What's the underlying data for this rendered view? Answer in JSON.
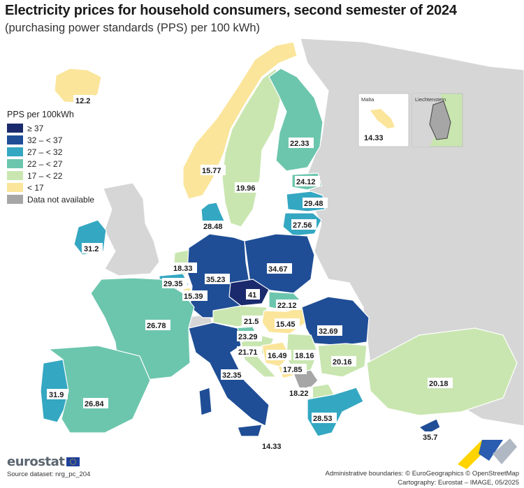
{
  "title": "Electricity prices for household consumers, second semester of 2024",
  "subtitle": "(purchasing power standards (PPS) per 100 kWh)",
  "legend": {
    "title": "PPS per 100kWh",
    "classes": [
      {
        "label": "≥ 37",
        "color": "#1a2a6c"
      },
      {
        "label": "32 – < 37",
        "color": "#1f4e96"
      },
      {
        "label": "27 – < 32",
        "color": "#34a7c2"
      },
      {
        "label": "22 – < 27",
        "color": "#6cc6ad"
      },
      {
        "label": "17 – < 22",
        "color": "#c9e6b0"
      },
      {
        "label": "< 17",
        "color": "#fbe59a"
      },
      {
        "label": "Data not available",
        "color": "#a6a6a6"
      }
    ]
  },
  "colors": {
    "non_eu_land": "#d6d6d6",
    "sea": "#ffffff",
    "border": "#ffffff"
  },
  "values": {
    "iceland": "12.2",
    "norway": "15.77",
    "sweden": "19.96",
    "finland": "22.33",
    "estonia": "24.12",
    "latvia": "29.48",
    "lithuania": "27.56",
    "denmark": "28.48",
    "ireland": "31.2",
    "netherlands": "18.33",
    "belgium": "29.35",
    "luxembourg": "15.39",
    "germany": "35.23",
    "poland": "34.67",
    "czechia": "41",
    "slovakia": "22.12",
    "austria": "21.5",
    "hungary": "15.45",
    "romania": "32.69",
    "france": "26.78",
    "slovenia": "23.29",
    "croatia": "21.71",
    "bosnia": "16.49",
    "serbia": "18.16",
    "montenegro": "17.85",
    "bulgaria": "20.16",
    "north_macedonia": "18.22",
    "greece": "28.53",
    "turkiye": "20.18",
    "portugal": "31.9",
    "spain": "26.84",
    "italy": "32.35",
    "sicily_malta_label": "14.33",
    "cyprus": "35.7"
  },
  "insets": {
    "malta": {
      "title": "Malta",
      "value": "14.33"
    },
    "liechtenstein": {
      "title": "Liechtenstein"
    }
  },
  "footer": {
    "logo": "eurostat",
    "source": "Source dataset: nrg_pc_204",
    "boundaries": "Administrative boundaries: © EuroGeographics © OpenStreetMap",
    "cartography": "Cartography: Eurostat – IMAGE, 05/2025"
  }
}
